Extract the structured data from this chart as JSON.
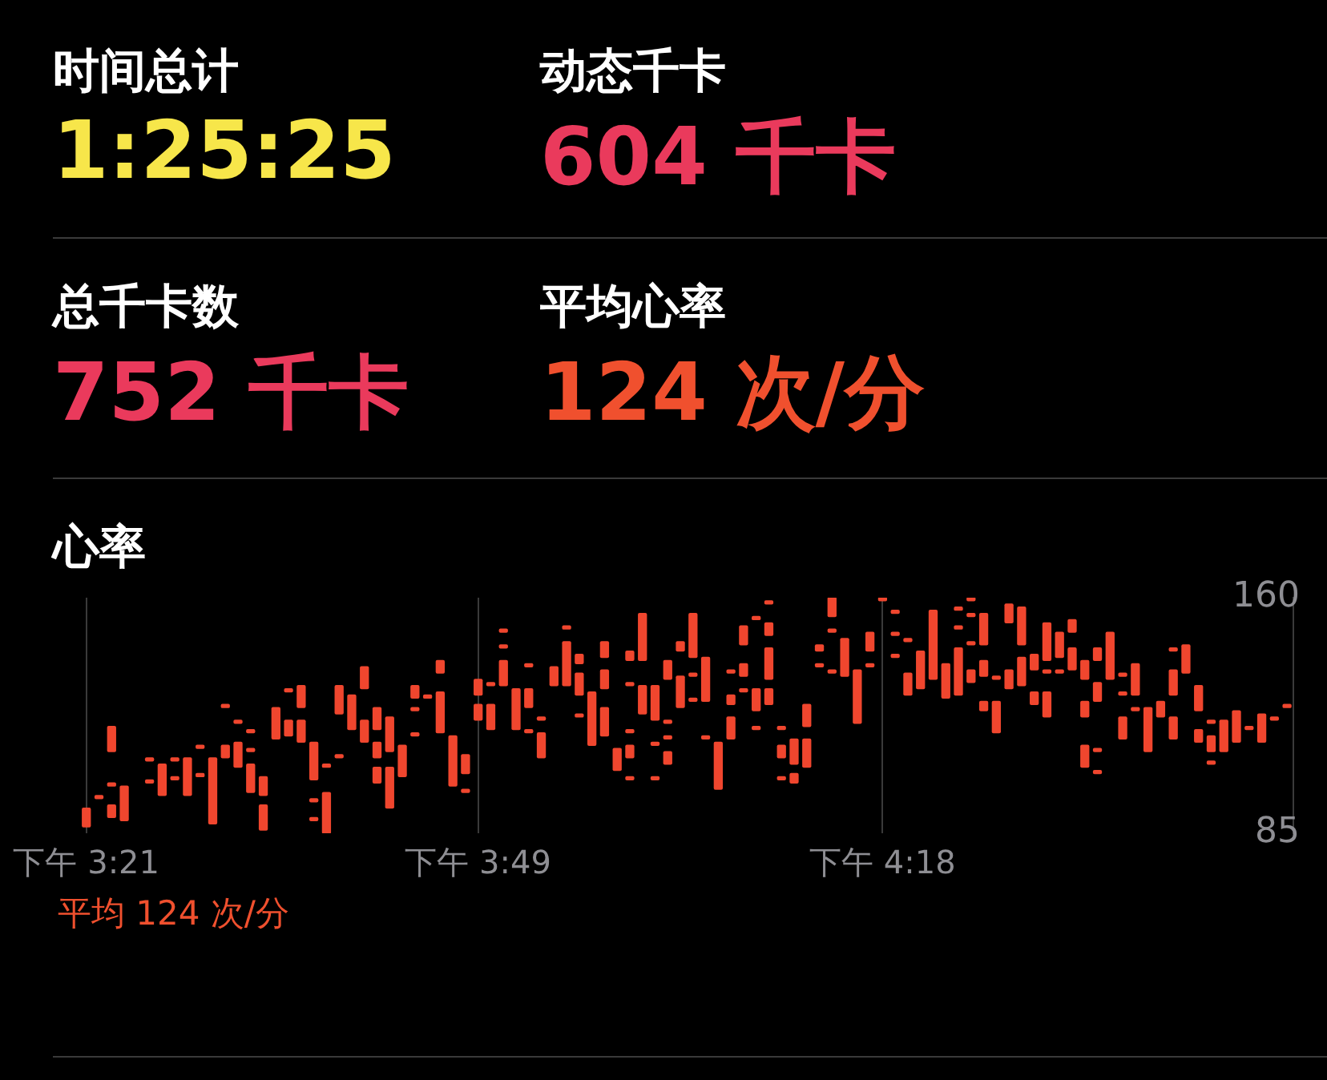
{
  "chart_data": [
    {
      "type": "other",
      "annotations": [
        "时间总计",
        "1:25:25",
        "动态千卡",
        "604 千卡",
        "总千卡数",
        "752 千卡",
        "平均心率",
        "124 次/分"
      ]
    },
    {
      "type": "bar",
      "title": "心率",
      "annotations": [
        "平均 124 次/分"
      ],
      "grid": "x",
      "ylim": [
        85,
        160
      ],
      "yticks": [
        85,
        160
      ],
      "categories": [
        "下午 3:21",
        null,
        null,
        null,
        null,
        null,
        null,
        null,
        null,
        null,
        null,
        null,
        null,
        null,
        null,
        null,
        null,
        null,
        null,
        null,
        null,
        null,
        null,
        null,
        null,
        null,
        null,
        null,
        null,
        null,
        null,
        "下午 3:49",
        null,
        null,
        null,
        null,
        null,
        null,
        null,
        null,
        null,
        null,
        null,
        null,
        null,
        null,
        null,
        null,
        null,
        null,
        null,
        null,
        null,
        null,
        null,
        null,
        null,
        null,
        null,
        null,
        null,
        null,
        null,
        "下午 4:18",
        null,
        null,
        null,
        null,
        null,
        null,
        null,
        null,
        null,
        null,
        null,
        null,
        null,
        null,
        null,
        null,
        null,
        null,
        null,
        null,
        null,
        null,
        null,
        null,
        null,
        null,
        null,
        null,
        null,
        null,
        null,
        null
      ],
      "series": [
        {
          "color": "#f0462e",
          "base": [
            87,
            96,
            111,
            89,
            null,
            108,
            97,
            108,
            97,
            112,
            88,
            125,
            120,
            117,
            97,
            115,
            130,
            125,
            102,
            106,
            123,
            118,
            131,
            118,
            111,
            103,
            128,
            128,
            136,
            100,
            104,
            129,
            132,
            149,
            118,
            138,
            121,
            132,
            150,
            139,
            113,
            141,
            105,
            140,
            140,
            121,
            134,
            143,
            141,
            127,
            99,
            136,
            145,
            153,
            158,
            118,
            107,
            119,
            143,
            154,
            135,
            120,
            143,
            159,
            155,
            146,
            131,
            134,
            128,
            156,
            159,
            145,
            134,
            152,
            145,
            137,
            140,
            141,
            149,
            134,
            140,
            134,
            135,
            129,
            111,
            122,
            143,
            136,
            124,
            120,
            111,
            114,
            118,
            114,
            121,
            125
          ],
          "values": [
            6,
            1,
            8,
            11,
            null,
            1,
            10,
            1,
            12,
            1,
            21,
            1,
            1,
            1,
            6,
            10,
            1,
            7,
            12,
            1,
            9,
            11,
            7,
            7,
            11,
            10,
            4,
            1,
            4,
            16,
            6,
            5,
            1,
            1,
            13,
            1,
            1,
            6,
            1,
            3,
            17,
            5,
            7,
            3,
            15,
            11,
            6,
            3,
            14,
            14,
            15,
            1,
            6,
            1,
            1,
            1,
            8,
            7,
            2,
            6,
            12,
            17,
            6,
            1,
            1,
            1,
            12,
            22,
            11,
            1,
            1,
            10,
            1,
            6,
            12,
            5,
            12,
            8,
            4,
            6,
            4,
            15,
            1,
            10,
            14,
            5,
            1,
            9,
            8,
            1,
            10,
            10,
            1,
            9,
            1,
            1
          ]
        },
        {
          "color": "#f0462e",
          "base": [
            null,
            null,
            100,
            null,
            null,
            101,
            null,
            102,
            null,
            103,
            null,
            109,
            106,
            111,
            86,
            null,
            116,
            114,
            95,
            85,
            109,
            null,
            114,
            109,
            93,
            null,
            124,
            null,
            117,
            null,
            98,
            121,
            118,
            144,
            null,
            125,
            109,
            null,
            132,
            129,
            null,
            131,
            null,
            132,
            123,
            113,
            120,
            125,
            135,
            115,
            null,
            126,
            135,
            124,
            148,
            109,
            101,
            106,
            138,
            149,
            null,
            null,
            138,
            null,
            148,
            129,
            null,
            null,
            null,
            150,
            154,
            135,
            117,
            131,
            132,
            126,
            136,
            136,
            137,
            122,
            127,
            null,
            129,
            124,
            null,
            null,
            129,
            null,
            114,
            111,
            null,
            null,
            null,
            null,
            null,
            null
          ],
          "values": [
            null,
            null,
            1,
            null,
            null,
            1,
            null,
            1,
            null,
            1,
            null,
            4,
            8,
            1,
            8,
            null,
            5,
            7,
            1,
            13,
            1,
            null,
            7,
            5,
            13,
            null,
            1,
            null,
            13,
            null,
            1,
            5,
            8,
            1,
            null,
            6,
            8,
            null,
            14,
            7,
            null,
            6,
            null,
            1,
            9,
            1,
            1,
            10,
            1,
            1,
            null,
            3,
            4,
            7,
            4,
            4,
            3,
            9,
            1,
            1,
            null,
            null,
            1,
            null,
            1,
            7,
            null,
            null,
            null,
            1,
            1,
            5,
            10,
            6,
            9,
            4,
            1,
            1,
            7,
            5,
            6,
            null,
            1,
            1,
            null,
            null,
            8,
            null,
            4,
            5,
            null,
            null,
            null,
            null,
            null,
            null
          ]
        },
        {
          "color": "#f0462e",
          "base": [
            null,
            null,
            90,
            null,
            null,
            null,
            null,
            null,
            null,
            null,
            null,
            null,
            null,
            98,
            null,
            null,
            null,
            null,
            89,
            null,
            null,
            null,
            null,
            101,
            null,
            null,
            116,
            null,
            null,
            null,
            null,
            null,
            null,
            132,
            null,
            117,
            null,
            null,
            null,
            122,
            null,
            116,
            null,
            117,
            null,
            102,
            115,
            null,
            127,
            null,
            null,
            115,
            130,
            118,
            134,
            102,
            null,
            null,
            null,
            136,
            null,
            null,
            null,
            null,
            141,
            null,
            null,
            null,
            null,
            129,
            145,
            124,
            null,
            null,
            null,
            null,
            122,
            null,
            null,
            106,
            111,
            null,
            115,
            null,
            null,
            null,
            115,
            null,
            null,
            107,
            null,
            null,
            null,
            null,
            null,
            null
          ],
          "values": [
            null,
            null,
            4,
            null,
            null,
            null,
            null,
            null,
            null,
            null,
            null,
            null,
            null,
            9,
            null,
            null,
            null,
            null,
            1,
            null,
            null,
            null,
            null,
            5,
            null,
            null,
            1,
            null,
            null,
            null,
            null,
            null,
            null,
            8,
            null,
            1,
            null,
            null,
            null,
            1,
            null,
            9,
            null,
            1,
            null,
            1,
            1,
            null,
            1,
            null,
            null,
            7,
            1,
            1,
            10,
            1,
            null,
            null,
            null,
            1,
            null,
            null,
            null,
            null,
            1,
            null,
            null,
            null,
            null,
            15,
            1,
            3,
            null,
            null,
            null,
            null,
            8,
            null,
            null,
            7,
            1,
            null,
            7,
            null,
            null,
            null,
            7,
            null,
            null,
            1,
            null,
            null,
            null,
            null,
            null,
            null
          ]
        },
        {
          "color": "#f0462e",
          "base": [
            null,
            null,
            null,
            null,
            null,
            null,
            null,
            null,
            null,
            null,
            null,
            null,
            null,
            null,
            null,
            null,
            null,
            null,
            null,
            null,
            null,
            null,
            null,
            null,
            null,
            null,
            null,
            null,
            null,
            null,
            null,
            null,
            null,
            null,
            null,
            null,
            null,
            null,
            null,
            null,
            null,
            null,
            null,
            109,
            null,
            null,
            107,
            null,
            null,
            null,
            null,
            null,
            null,
            null,
            126,
            null,
            null,
            null,
            null,
            null,
            null,
            null,
            null,
            null,
            null,
            null,
            null,
            null,
            null,
            null,
            133,
            null,
            null,
            null,
            null,
            null,
            null,
            null,
            null,
            null,
            104,
            null,
            null,
            null,
            null,
            null,
            null,
            null,
            null,
            null,
            null,
            null,
            null,
            null,
            null,
            null
          ],
          "values": [
            null,
            null,
            null,
            null,
            null,
            null,
            null,
            null,
            null,
            null,
            null,
            null,
            null,
            null,
            null,
            null,
            null,
            null,
            null,
            null,
            null,
            null,
            null,
            null,
            null,
            null,
            null,
            null,
            null,
            null,
            null,
            null,
            null,
            null,
            null,
            null,
            null,
            null,
            null,
            null,
            null,
            null,
            null,
            4,
            null,
            null,
            4,
            null,
            null,
            null,
            null,
            null,
            null,
            null,
            5,
            null,
            null,
            null,
            null,
            null,
            null,
            null,
            null,
            null,
            null,
            null,
            null,
            null,
            null,
            null,
            4,
            null,
            null,
            null,
            null,
            null,
            null,
            null,
            null,
            null,
            1,
            null,
            null,
            null,
            null,
            null,
            null,
            null,
            null,
            null,
            null,
            null,
            null,
            null,
            null,
            null
          ]
        },
        {
          "color": "#f0462e",
          "base": [
            null,
            null,
            null,
            null,
            null,
            null,
            null,
            null,
            null,
            null,
            null,
            null,
            null,
            null,
            null,
            null,
            null,
            null,
            null,
            null,
            null,
            null,
            null,
            null,
            null,
            null,
            null,
            null,
            null,
            null,
            null,
            null,
            null,
            null,
            null,
            null,
            null,
            null,
            null,
            null,
            null,
            null,
            null,
            102,
            null,
            null,
            null,
            null,
            null,
            null,
            null,
            null,
            null,
            null,
            null,
            null,
            null,
            null,
            null,
            null,
            null,
            null,
            null,
            null,
            null,
            null,
            null,
            null,
            null,
            null,
            null,
            null,
            null,
            null,
            null,
            null,
            null,
            null,
            null,
            null,
            null,
            null,
            null,
            null,
            null,
            null,
            null,
            null,
            null,
            null,
            null,
            null,
            null,
            null,
            null,
            null
          ],
          "values": [
            null,
            null,
            null,
            null,
            null,
            null,
            null,
            null,
            null,
            null,
            null,
            null,
            null,
            null,
            null,
            null,
            null,
            null,
            null,
            null,
            null,
            null,
            null,
            null,
            null,
            null,
            null,
            null,
            null,
            null,
            null,
            null,
            null,
            null,
            null,
            null,
            null,
            null,
            null,
            null,
            null,
            null,
            null,
            1,
            null,
            null,
            null,
            null,
            null,
            null,
            null,
            null,
            null,
            null,
            null,
            null,
            null,
            null,
            null,
            null,
            null,
            null,
            null,
            null,
            null,
            null,
            null,
            null,
            null,
            null,
            null,
            null,
            null,
            null,
            null,
            null,
            null,
            null,
            null,
            null,
            null,
            null,
            null,
            null,
            null,
            null,
            null,
            null,
            null,
            null,
            null,
            null,
            null,
            null,
            null,
            null
          ]
        }
      ]
    }
  ]
}
